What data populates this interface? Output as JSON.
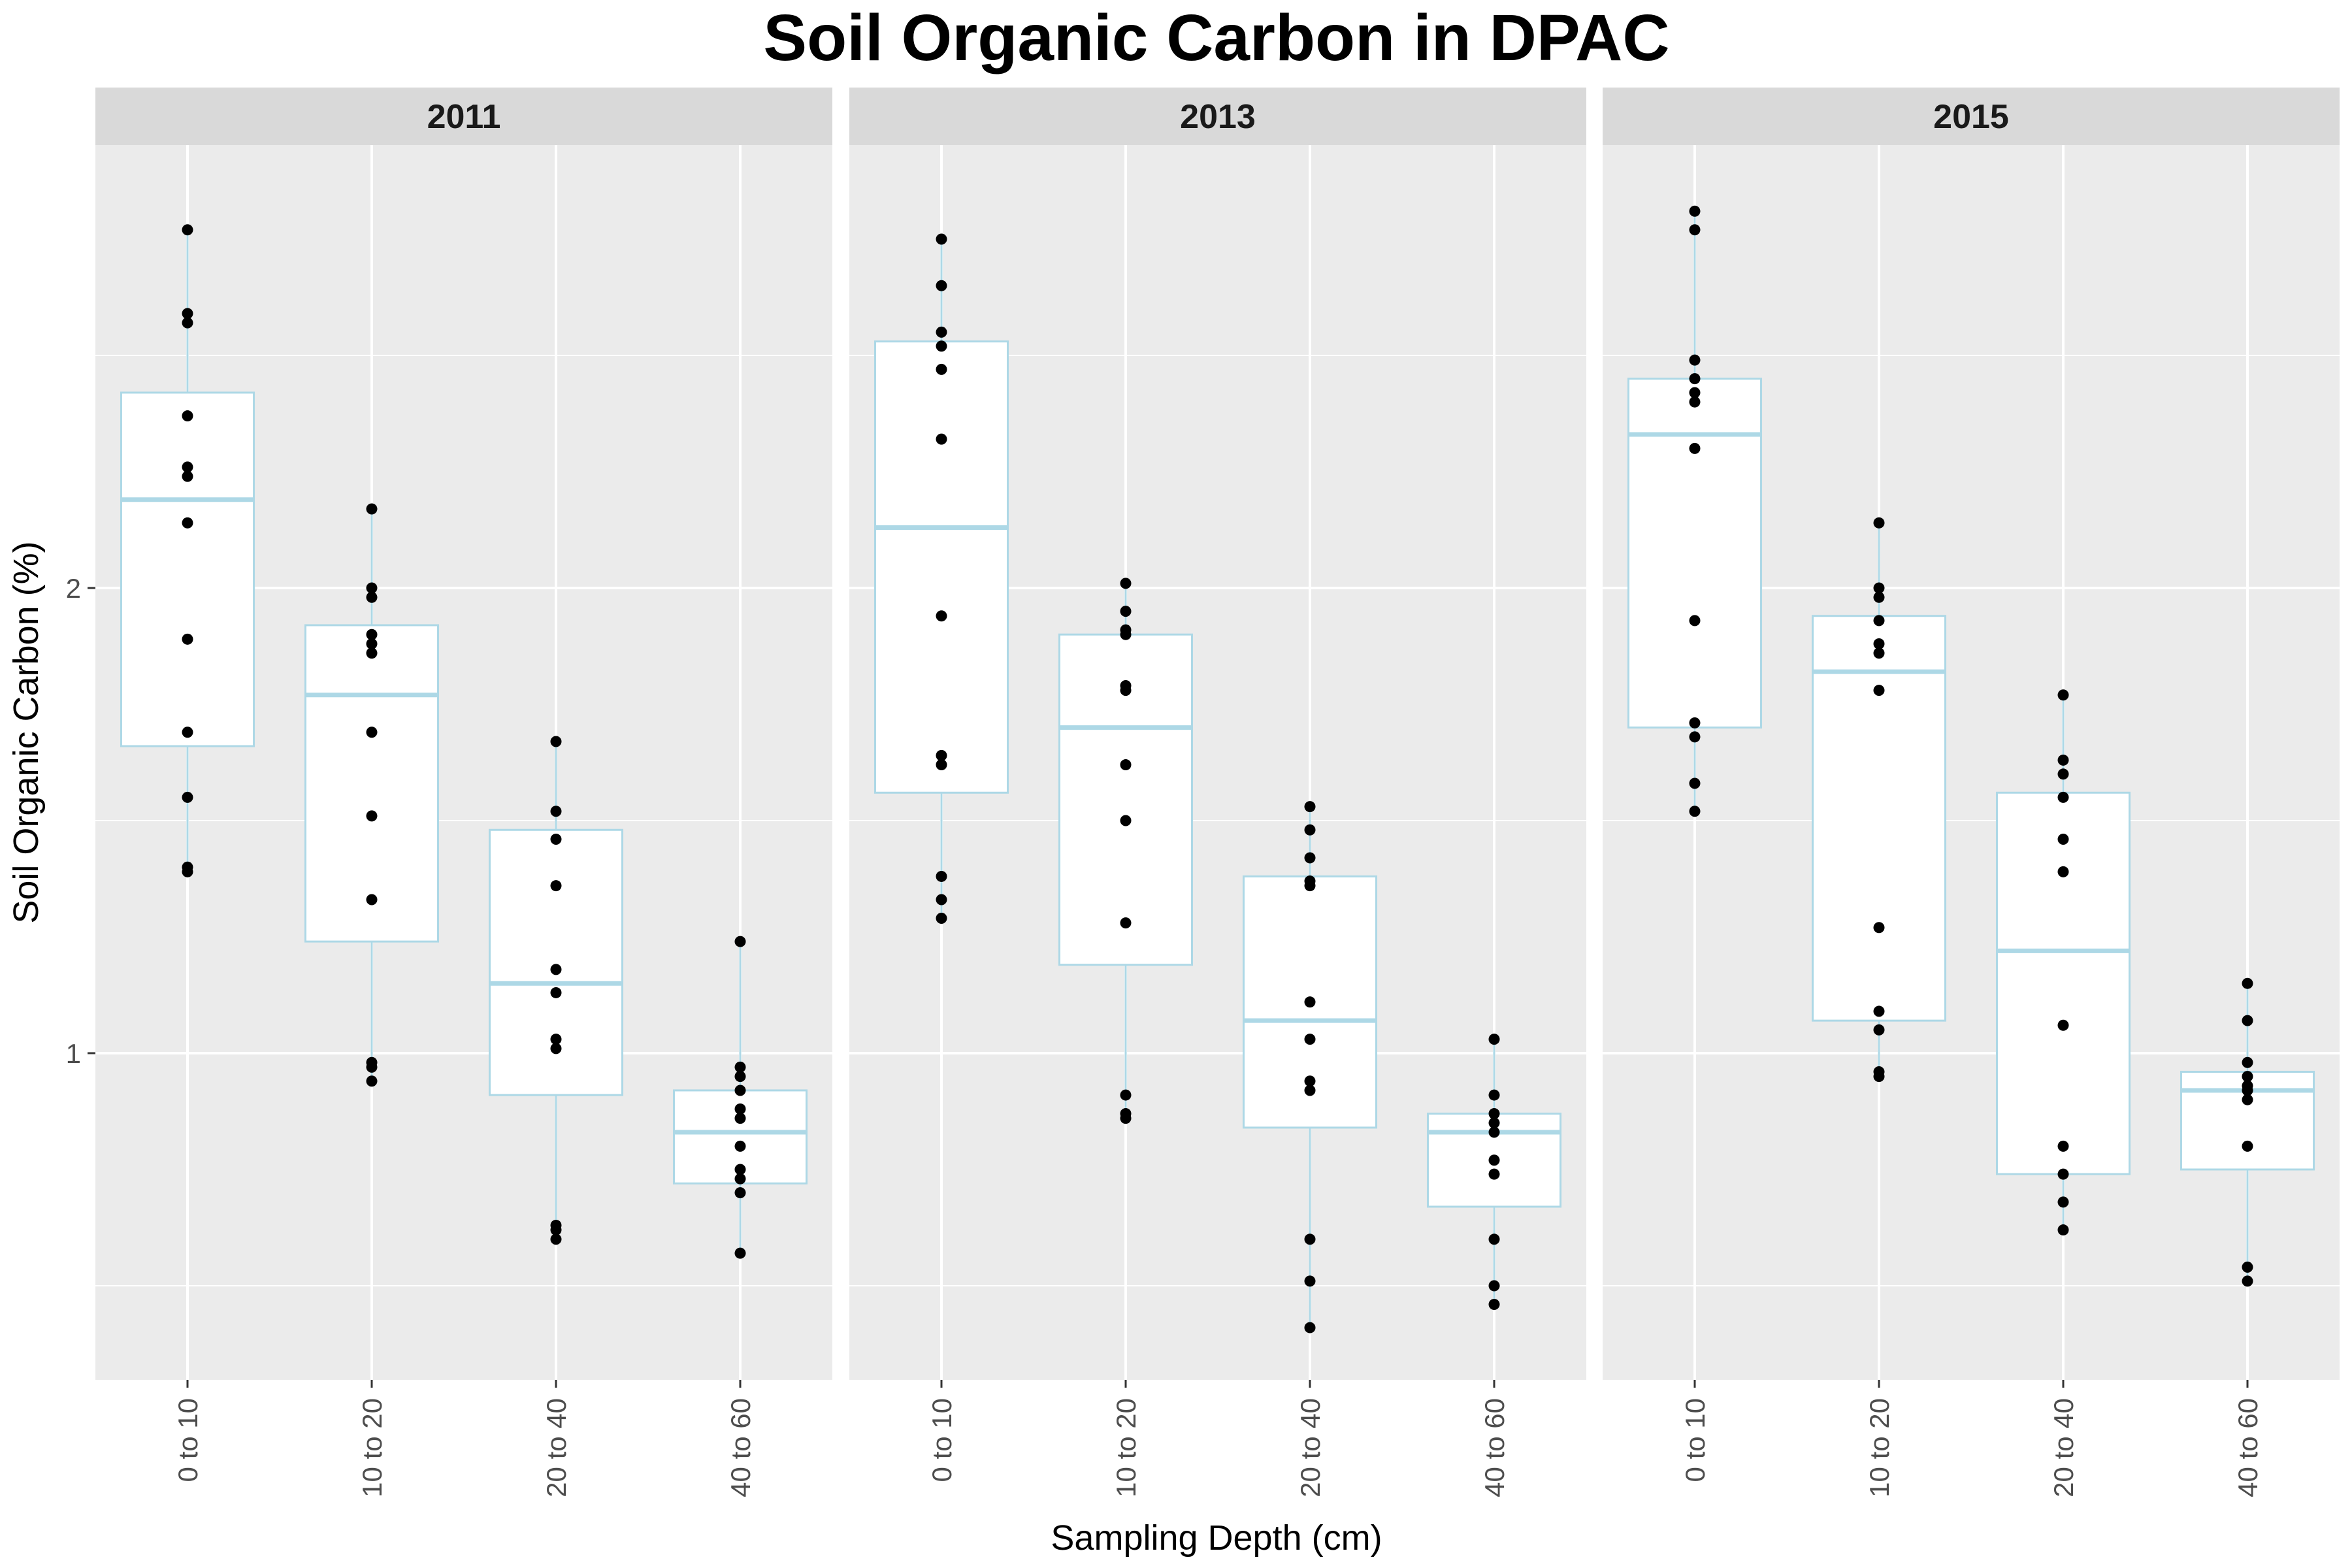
{
  "chart_data": {
    "type": "box",
    "title": "Soil Organic Carbon in DPAC",
    "xlabel": "Sampling Depth (cm)",
    "ylabel": "Soil Organic Carbon (%)",
    "categories": [
      "0 to 10",
      "10 to 20",
      "20 to 40",
      "40 to 60"
    ],
    "yticks": [
      1,
      2
    ],
    "ylim": [
      0.3,
      3.0
    ],
    "grid": true,
    "colors": {
      "panel_bg": "#ebebeb",
      "grid_major": "#ffffff",
      "strip_bg": "#d9d9d9",
      "box_outline": "#add8e6",
      "box_fill": "#ffffff",
      "points": "#000000"
    },
    "panels": [
      {
        "label": "2011",
        "groups": [
          {
            "category": "0 to 10",
            "q1": 1.66,
            "median": 2.19,
            "q3": 2.42,
            "whisker_low": 1.39,
            "whisker_high": 2.77,
            "points": [
              2.77,
              2.59,
              2.57,
              2.37,
              2.26,
              2.24,
              2.14,
              1.89,
              1.69,
              1.55,
              1.4,
              1.39
            ]
          },
          {
            "category": "10 to 20",
            "q1": 1.24,
            "median": 1.77,
            "q3": 1.92,
            "whisker_low": 0.94,
            "whisker_high": 2.17,
            "points": [
              2.17,
              2.0,
              1.98,
              1.9,
              1.88,
              1.86,
              1.69,
              1.51,
              1.33,
              0.98,
              0.97,
              0.94
            ]
          },
          {
            "category": "20 to 40",
            "q1": 0.91,
            "median": 1.15,
            "q3": 1.48,
            "whisker_low": 0.6,
            "whisker_high": 1.67,
            "points": [
              1.67,
              1.52,
              1.46,
              1.36,
              1.18,
              1.13,
              1.03,
              1.01,
              0.63,
              0.62,
              0.6
            ]
          },
          {
            "category": "40 to 60",
            "q1": 0.72,
            "median": 0.83,
            "q3": 0.92,
            "whisker_low": 0.57,
            "whisker_high": 1.24,
            "points": [
              1.24,
              0.97,
              0.95,
              0.92,
              0.88,
              0.86,
              0.8,
              0.75,
              0.73,
              0.7,
              0.57
            ]
          }
        ]
      },
      {
        "label": "2013",
        "groups": [
          {
            "category": "0 to 10",
            "q1": 1.56,
            "median": 2.13,
            "q3": 2.53,
            "whisker_low": 1.29,
            "whisker_high": 2.75,
            "points": [
              2.75,
              2.65,
              2.55,
              2.52,
              2.47,
              2.32,
              1.94,
              1.64,
              1.62,
              1.38,
              1.33,
              1.29
            ]
          },
          {
            "category": "10 to 20",
            "q1": 1.19,
            "median": 1.7,
            "q3": 1.9,
            "whisker_low": 0.86,
            "whisker_high": 2.01,
            "points": [
              2.01,
              1.95,
              1.91,
              1.9,
              1.79,
              1.78,
              1.62,
              1.5,
              1.28,
              0.91,
              0.87,
              0.86
            ]
          },
          {
            "category": "20 to 40",
            "q1": 0.84,
            "median": 1.07,
            "q3": 1.38,
            "whisker_low": 0.41,
            "whisker_high": 1.53,
            "points": [
              1.53,
              1.48,
              1.42,
              1.37,
              1.36,
              1.11,
              1.03,
              0.94,
              0.92,
              0.6,
              0.51,
              0.41
            ]
          },
          {
            "category": "40 to 60",
            "q1": 0.67,
            "median": 0.83,
            "q3": 0.87,
            "whisker_low": 0.46,
            "whisker_high": 1.03,
            "points": [
              1.03,
              0.91,
              0.87,
              0.85,
              0.83,
              0.77,
              0.74,
              0.6,
              0.5,
              0.46
            ]
          }
        ]
      },
      {
        "label": "2015",
        "groups": [
          {
            "category": "0 to 10",
            "q1": 1.7,
            "median": 2.33,
            "q3": 2.45,
            "whisker_low": 1.52,
            "whisker_high": 2.81,
            "points": [
              2.81,
              2.77,
              2.49,
              2.45,
              2.42,
              2.4,
              2.3,
              1.93,
              1.71,
              1.68,
              1.58,
              1.52
            ]
          },
          {
            "category": "10 to 20",
            "q1": 1.07,
            "median": 1.82,
            "q3": 1.94,
            "whisker_low": 0.95,
            "whisker_high": 2.14,
            "points": [
              2.14,
              2.0,
              1.98,
              1.93,
              1.88,
              1.86,
              1.78,
              1.27,
              1.09,
              1.05,
              0.96,
              0.95
            ]
          },
          {
            "category": "20 to 40",
            "q1": 0.74,
            "median": 1.22,
            "q3": 1.56,
            "whisker_low": 0.62,
            "whisker_high": 1.77,
            "points": [
              1.77,
              1.63,
              1.6,
              1.55,
              1.46,
              1.39,
              1.06,
              0.8,
              0.74,
              0.68,
              0.62
            ]
          },
          {
            "category": "40 to 60",
            "q1": 0.75,
            "median": 0.92,
            "q3": 0.96,
            "whisker_low": 0.51,
            "whisker_high": 1.15,
            "points": [
              1.15,
              1.07,
              0.98,
              0.95,
              0.93,
              0.92,
              0.9,
              0.8,
              0.54,
              0.51
            ]
          }
        ]
      }
    ]
  }
}
